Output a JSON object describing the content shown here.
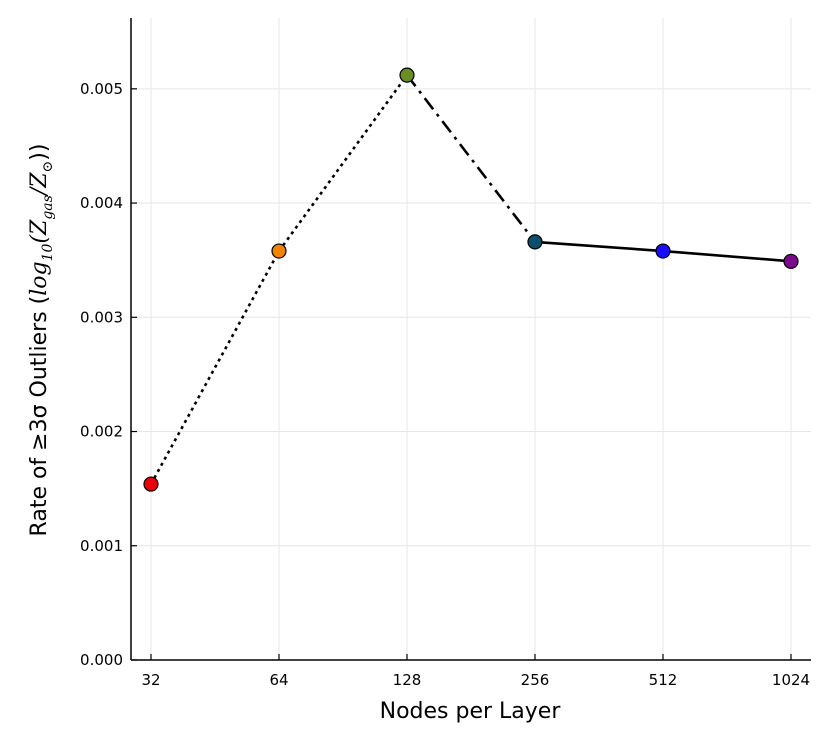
{
  "chart_data": {
    "type": "line",
    "xscale": "log2",
    "categories": [
      "32",
      "64",
      "128",
      "256",
      "512",
      "1024"
    ],
    "x": [
      32,
      64,
      128,
      256,
      512,
      1024
    ],
    "values": [
      0.00154,
      0.00358,
      0.00512,
      0.00366,
      0.00358,
      0.00349
    ],
    "marker_colors": [
      "#e8000b",
      "#f28500",
      "#6b8e23",
      "#0b4f6c",
      "#1a0dff",
      "#7a0a8c"
    ],
    "segment_styles": [
      "dotted",
      "dotted",
      "dashdot",
      "solid",
      "solid"
    ],
    "xlabel": "Nodes per Layer",
    "ylabel": {
      "prefix": "Rate of ≥3σ Outliers (",
      "log": "log",
      "log_sub": "10",
      "paren_open": "(",
      "Z1": "Z",
      "Z1_sub": "gas",
      "slash": "/",
      "Z2": "Z",
      "Z2_sub": "⊙",
      "suffix": "))"
    },
    "yticks": [
      0.0,
      0.001,
      0.002,
      0.003,
      0.004,
      0.005
    ],
    "ytick_labels": [
      "0.000",
      "0.001",
      "0.002",
      "0.003",
      "0.004",
      "0.005"
    ],
    "ylim": [
      0,
      0.00562
    ],
    "grid": true,
    "legend": "none"
  }
}
